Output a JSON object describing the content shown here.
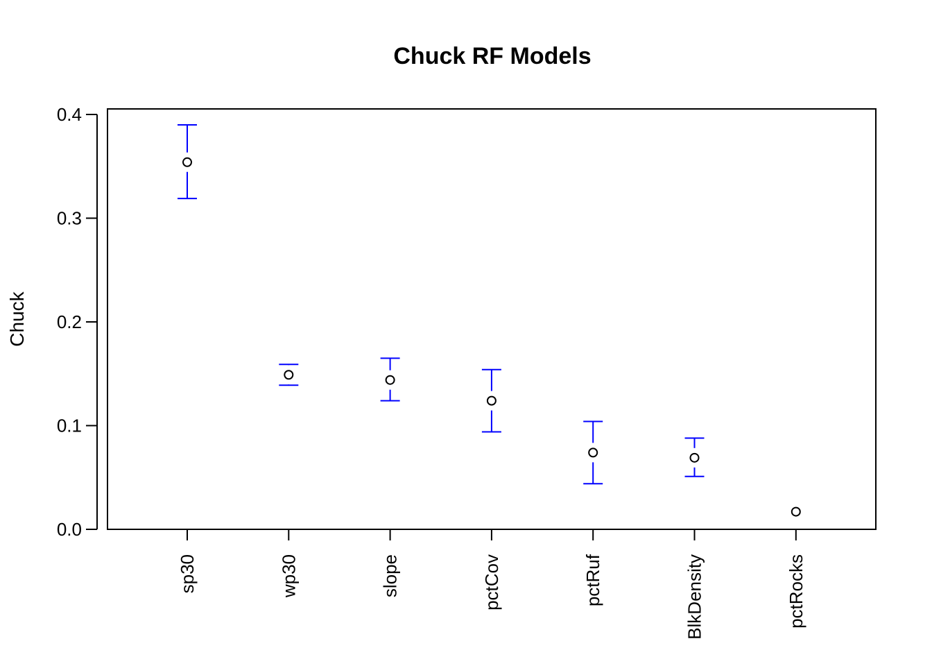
{
  "chart_data": {
    "type": "scatter",
    "title": "Chuck RF Models",
    "xlabel": "",
    "ylabel": "Chuck",
    "categories": [
      "sp30",
      "wp30",
      "slope",
      "pctCov",
      "pctRuf",
      "BlkDensity",
      "pctRocks"
    ],
    "values": [
      0.354,
      0.149,
      0.144,
      0.124,
      0.074,
      0.069,
      0.017
    ],
    "lower": [
      0.319,
      0.139,
      0.124,
      0.094,
      0.044,
      0.051,
      0.017
    ],
    "upper": [
      0.39,
      0.159,
      0.165,
      0.154,
      0.104,
      0.088,
      0.017
    ],
    "ylim": [
      0.0,
      0.4
    ],
    "yticks": [
      "0.0",
      "0.1",
      "0.2",
      "0.3",
      "0.4"
    ],
    "grid": false,
    "legend": "none",
    "point_color": "#000000",
    "errorbar_color": "#0000ff"
  }
}
